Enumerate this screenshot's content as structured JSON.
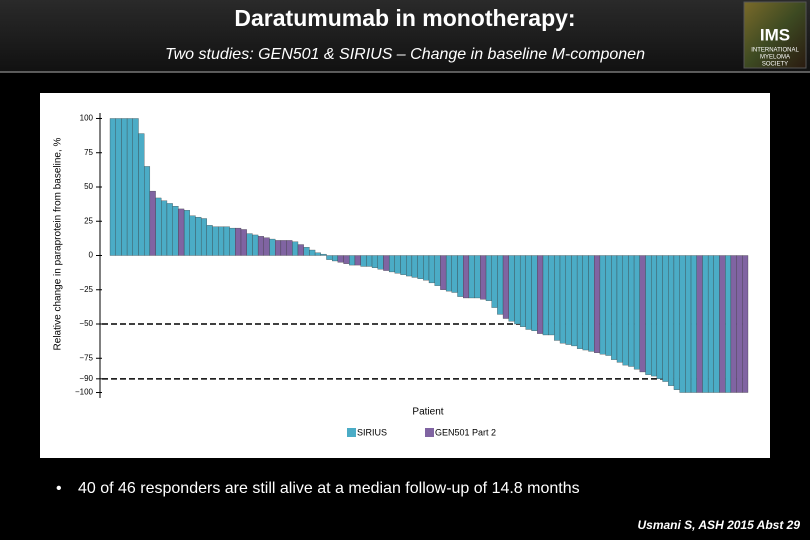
{
  "header": {
    "title": "Daratumumab in monotherapy:",
    "subtitle": "Two studies: GEN501 & SIRIUS – Change in baseline M-componen",
    "logo": {
      "name": "IMS",
      "lines": [
        "INTERNATIONAL",
        "MYELOMA",
        "SOCIETY"
      ]
    }
  },
  "chart_data": {
    "type": "bar",
    "ylabel": "Relative change in paraprotein from baseline, %",
    "xlabel": "Patient",
    "categories": [
      null,
      null,
      null,
      null,
      null,
      null,
      null,
      null,
      null,
      null,
      null,
      null,
      null,
      null,
      null,
      null,
      null,
      null,
      null,
      null,
      null,
      null,
      null,
      null,
      null,
      null,
      null,
      null,
      null,
      null,
      null,
      null,
      null,
      null,
      null,
      null,
      null,
      null,
      null,
      null,
      null,
      null,
      null,
      null,
      null,
      null,
      null,
      null,
      null,
      null,
      null,
      null,
      null,
      null,
      null,
      null,
      null,
      null,
      null,
      null,
      null,
      null,
      null,
      null,
      null,
      null,
      null,
      null,
      null,
      null,
      null,
      null,
      null,
      null,
      null,
      null,
      null,
      null,
      null,
      null,
      null,
      null,
      null,
      null,
      null,
      null,
      null,
      null,
      null,
      null,
      null,
      null,
      null,
      null,
      null,
      null,
      null,
      null,
      null,
      null,
      null,
      null,
      null,
      null,
      null,
      null,
      null,
      null,
      null,
      null,
      null,
      null
    ],
    "series": [
      {
        "name": "SIRIUS",
        "color": "#4bacc6",
        "values": [
          100,
          100,
          100,
          100,
          100,
          89,
          65,
          null,
          42,
          40,
          38,
          36,
          null,
          33,
          29,
          28,
          27,
          22,
          21,
          21,
          21,
          20,
          null,
          null,
          16,
          15,
          null,
          null,
          12,
          null,
          null,
          null,
          10,
          null,
          6,
          4,
          2,
          1,
          -3,
          -4,
          null,
          null,
          -7,
          null,
          -8,
          -8,
          -9,
          -10,
          null,
          -12,
          -13,
          -14,
          -15,
          -16,
          -17,
          -18,
          -20,
          -22,
          null,
          -26,
          -27,
          -30,
          null,
          -31,
          -31,
          null,
          -33,
          -38,
          -43,
          null,
          -48,
          -50,
          -52,
          -54,
          -55,
          null,
          -58,
          -58,
          -62,
          -64,
          -65,
          -66,
          -68,
          -69,
          -70,
          null,
          -72,
          -73,
          -76,
          -78,
          -80,
          -81,
          -83,
          null,
          -87,
          -88,
          -90,
          -92,
          -95,
          -98,
          -100,
          -100,
          -100,
          null,
          -100,
          -100,
          -100,
          null,
          -100,
          null,
          null,
          null
        ]
      },
      {
        "name": "GEN501 Part 2",
        "color": "#8064a2",
        "values": [
          null,
          null,
          null,
          null,
          null,
          null,
          null,
          47,
          null,
          null,
          null,
          null,
          34,
          null,
          null,
          null,
          null,
          null,
          null,
          null,
          null,
          null,
          20,
          19,
          null,
          null,
          14,
          13,
          null,
          11,
          11,
          11,
          null,
          8,
          null,
          null,
          null,
          null,
          null,
          null,
          -5,
          -6,
          null,
          -7,
          null,
          null,
          null,
          null,
          -11,
          null,
          null,
          null,
          null,
          null,
          null,
          null,
          null,
          null,
          -25,
          null,
          null,
          null,
          -31,
          null,
          null,
          -32,
          null,
          null,
          null,
          -46,
          null,
          null,
          null,
          null,
          null,
          -57,
          null,
          null,
          null,
          null,
          null,
          null,
          null,
          null,
          null,
          -71,
          null,
          null,
          null,
          null,
          null,
          null,
          null,
          -85,
          null,
          null,
          null,
          null,
          null,
          null,
          null,
          null,
          null,
          -100,
          null,
          null,
          null,
          -100,
          null,
          -100,
          -100,
          -100
        ]
      }
    ],
    "ylim": [
      -104,
      104
    ],
    "yticks": [
      100,
      75,
      50,
      25,
      0,
      {
        "value": -25,
        "label": "−25"
      },
      {
        "value": -50,
        "label": "−50"
      },
      {
        "value": -75,
        "label": "−75"
      },
      {
        "value": -90,
        "label": "−90"
      },
      {
        "value": -100,
        "label": "−100"
      }
    ],
    "reference_lines": [
      -50,
      -90
    ]
  },
  "bullet": "40 of 46 responders are still alive at a median follow-up of 14.8 months",
  "footnote": "Usmani S, ASH 2015 Abst 29"
}
